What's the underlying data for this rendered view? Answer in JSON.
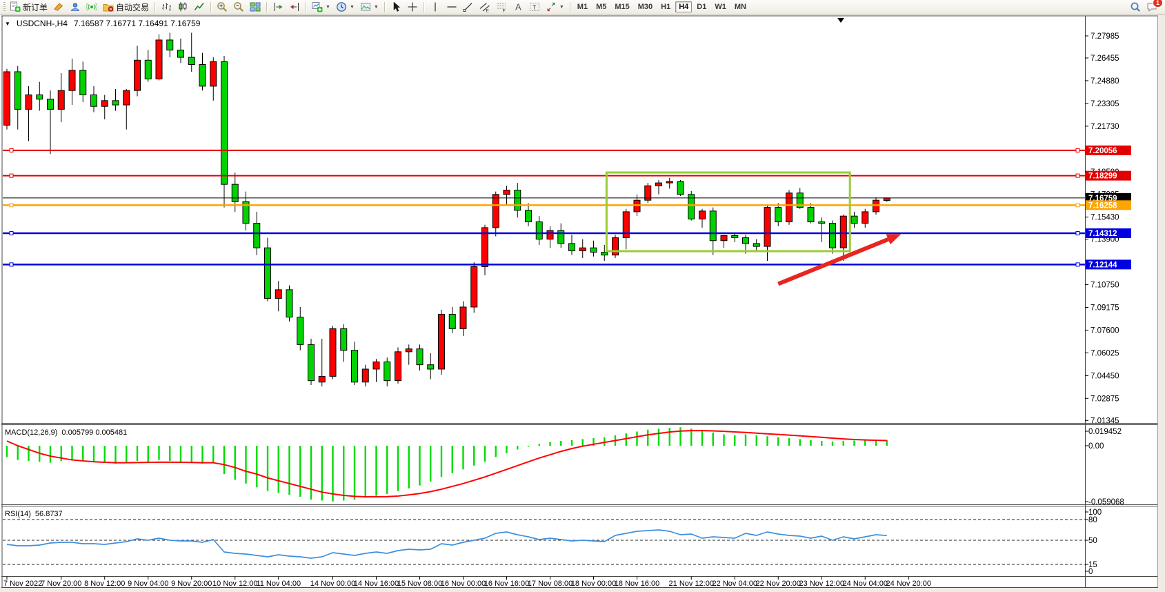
{
  "window": {
    "background": "#e9e6df"
  },
  "toolbar": {
    "groups": [
      {
        "name": "trade",
        "items": [
          {
            "name": "new-order-button",
            "icon": "new-order-icon",
            "label": "新订单"
          },
          {
            "name": "highlighter-button",
            "icon": "highlighter-icon"
          },
          {
            "name": "community-button",
            "icon": "cloud-user-icon"
          },
          {
            "name": "signals-button",
            "icon": "signal-icon"
          },
          {
            "name": "auto-trading-button",
            "icon": "autotrade-icon",
            "label": "自动交易"
          }
        ]
      },
      {
        "name": "chart-type",
        "items": [
          {
            "name": "bar-chart-button",
            "icon": "bars-chart-icon"
          },
          {
            "name": "candlestick-chart-button",
            "icon": "candle-chart-icon"
          },
          {
            "name": "line-chart-button",
            "icon": "line-chart-icon"
          }
        ]
      },
      {
        "name": "zoom",
        "items": [
          {
            "name": "zoom-in-button",
            "icon": "zoom-in-icon"
          },
          {
            "name": "zoom-out-button",
            "icon": "zoom-out-icon"
          },
          {
            "name": "tile-windows-button",
            "icon": "tile-windows-icon"
          }
        ]
      },
      {
        "name": "scroll",
        "items": [
          {
            "name": "auto-scroll-button",
            "icon": "auto-scroll-icon"
          },
          {
            "name": "chart-shift-button",
            "icon": "chart-shift-icon"
          }
        ]
      },
      {
        "name": "new-objects",
        "items": [
          {
            "name": "new-chart-button",
            "icon": "new-chart-icon",
            "dropdown": true
          },
          {
            "name": "period-button",
            "icon": "clock-icon",
            "dropdown": true
          },
          {
            "name": "templates-button",
            "icon": "template-icon",
            "dropdown": true
          }
        ]
      },
      {
        "name": "pointer",
        "items": [
          {
            "name": "cursor-button",
            "icon": "cursor-icon"
          },
          {
            "name": "crosshair-button",
            "icon": "crosshair-icon"
          }
        ]
      },
      {
        "name": "drawing-objects",
        "items": [
          {
            "name": "vertical-line-button",
            "icon": "vline-icon"
          },
          {
            "name": "horizontal-line-button",
            "icon": "hline-icon"
          },
          {
            "name": "trendline-button",
            "icon": "trendline-icon"
          },
          {
            "name": "channel-button",
            "icon": "channel-icon"
          },
          {
            "name": "fibonacci-button",
            "icon": "fibo-icon"
          },
          {
            "name": "text-button",
            "icon": "text-a-icon"
          },
          {
            "name": "text-label-button",
            "icon": "text-label-icon"
          },
          {
            "name": "arrows-button",
            "icon": "arrows-icon",
            "dropdown": true
          }
        ]
      },
      {
        "name": "timeframes",
        "type": "timeframes",
        "items": [
          {
            "name": "tf-m1",
            "label": "M1"
          },
          {
            "name": "tf-m5",
            "label": "M5"
          },
          {
            "name": "tf-m15",
            "label": "M15"
          },
          {
            "name": "tf-m30",
            "label": "M30"
          },
          {
            "name": "tf-h1",
            "label": "H1"
          },
          {
            "name": "tf-h4",
            "label": "H4",
            "active": true
          },
          {
            "name": "tf-d1",
            "label": "D1"
          },
          {
            "name": "tf-w1",
            "label": "W1"
          },
          {
            "name": "tf-mn",
            "label": "MN"
          }
        ]
      }
    ],
    "right_items": [
      {
        "name": "search-button",
        "icon": "search-icon"
      },
      {
        "name": "chat-button",
        "icon": "chat-icon",
        "badge": "1"
      }
    ]
  },
  "chart": {
    "symbol_period": "USDCNH-,H4",
    "ohlc": "7.16587 7.16771 7.16491 7.16759",
    "macd_label": "MACD(12,26,9)",
    "macd_values": "0.005799 0.005481",
    "rsi_label": "RSI(14)",
    "rsi_value": "56.8737"
  },
  "chart_data": {
    "type": "candlestick",
    "symbol": "USDCNH-",
    "timeframe": "H4",
    "current_bar": {
      "open": 7.16587,
      "high": 7.16771,
      "low": 7.16491,
      "close": 7.16759
    },
    "y_range": {
      "top": 7.27985,
      "bottom": 7.01345
    },
    "colors": {
      "bull": "#ff0000",
      "bear": "#00d300",
      "wick": "#000000",
      "macd_hist": "#00dd00",
      "macd_signal": "#ff0000",
      "rsi_line": "#3e8fde",
      "box": "#9acd32",
      "arrow": "#e8251f",
      "line_red": "#e30000",
      "line_blue": "#0000e0",
      "line_orange": "#ffa500",
      "line_black": "#000000"
    },
    "price_axis_labels": [
      "7.27985",
      "7.26455",
      "7.24880",
      "7.23305",
      "7.21730",
      "7.18580",
      "7.17005",
      "7.15430",
      "7.13900",
      "7.10750",
      "7.09175",
      "7.07600",
      "7.06025",
      "7.04450",
      "7.02875",
      "7.01345"
    ],
    "price_lines": [
      {
        "price": 7.20056,
        "label": "7.20056",
        "color": "#e30000",
        "text": "#ffffff",
        "type": "resistance-line",
        "width": 2
      },
      {
        "price": 7.18299,
        "label": "7.18299",
        "color": "#e30000",
        "text": "#ffffff",
        "type": "resistance-line",
        "width": 2
      },
      {
        "price": 7.16759,
        "label": "7.16759",
        "color": "#000000",
        "text": "#ffffff",
        "type": "current-price-line",
        "width": 1
      },
      {
        "price": 7.16258,
        "label": "7.16258",
        "color": "#ffa500",
        "text": "#ffffff",
        "type": "level-line",
        "width": 2.5
      },
      {
        "price": 7.14312,
        "label": "7.14312",
        "color": "#0000e0",
        "text": "#ffffff",
        "type": "support-line",
        "width": 2.5
      },
      {
        "price": 7.12144,
        "label": "7.12144",
        "color": "#0000e0",
        "text": "#ffffff",
        "type": "support-line",
        "width": 2.5
      }
    ],
    "time_labels": [
      "7 Nov 2022",
      "7 Nov 20:00",
      "8 Nov 12:00",
      "9 Nov 04:00",
      "9 Nov 20:00",
      "10 Nov 12:00",
      "11 Nov 04:00",
      "14 Nov 00:00",
      "14 Nov 16:00",
      "15 Nov 08:00",
      "16 Nov 00:00",
      "16 Nov 16:00",
      "17 Nov 08:00",
      "18 Nov 00:00",
      "18 Nov 16:00",
      "21 Nov 12:00",
      "22 Nov 04:00",
      "22 Nov 20:00",
      "23 Nov 12:00",
      "24 Nov 04:00",
      "24 Nov 20:00"
    ],
    "time_label_bars": [
      0,
      5,
      9,
      13,
      17,
      21,
      25,
      30,
      34,
      38,
      42,
      46,
      50,
      54,
      58,
      63,
      67,
      71,
      75,
      79,
      83
    ],
    "candles": [
      [
        7.218,
        7.257,
        7.215,
        7.255
      ],
      [
        7.255,
        7.259,
        7.215,
        7.229
      ],
      [
        7.229,
        7.245,
        7.207,
        7.239
      ],
      [
        7.239,
        7.248,
        7.228,
        7.236
      ],
      [
        7.236,
        7.242,
        7.198,
        7.229
      ],
      [
        7.229,
        7.254,
        7.22,
        7.242
      ],
      [
        7.242,
        7.264,
        7.232,
        7.256
      ],
      [
        7.256,
        7.262,
        7.234,
        7.239
      ],
      [
        7.239,
        7.245,
        7.227,
        7.231
      ],
      [
        7.231,
        7.239,
        7.222,
        7.235
      ],
      [
        7.235,
        7.243,
        7.228,
        7.232
      ],
      [
        7.232,
        7.243,
        7.215,
        7.242
      ],
      [
        7.242,
        7.273,
        7.238,
        7.263
      ],
      [
        7.263,
        7.27,
        7.248,
        7.25
      ],
      [
        7.25,
        7.281,
        7.249,
        7.277
      ],
      [
        7.277,
        7.282,
        7.265,
        7.27
      ],
      [
        7.27,
        7.278,
        7.261,
        7.265
      ],
      [
        7.265,
        7.282,
        7.255,
        7.26
      ],
      [
        7.26,
        7.268,
        7.242,
        7.245
      ],
      [
        7.245,
        7.265,
        7.235,
        7.262
      ],
      [
        7.262,
        7.266,
        7.161,
        7.177
      ],
      [
        7.177,
        7.185,
        7.158,
        7.165
      ],
      [
        7.165,
        7.172,
        7.145,
        7.15
      ],
      [
        7.15,
        7.158,
        7.128,
        7.133
      ],
      [
        7.133,
        7.14,
        7.096,
        7.098
      ],
      [
        7.098,
        7.11,
        7.089,
        7.104
      ],
      [
        7.104,
        7.107,
        7.082,
        7.085
      ],
      [
        7.085,
        7.092,
        7.062,
        7.066
      ],
      [
        7.066,
        7.07,
        7.038,
        7.041
      ],
      [
        7.04,
        7.07,
        7.037,
        7.044
      ],
      [
        7.044,
        7.079,
        7.042,
        7.077
      ],
      [
        7.077,
        7.08,
        7.054,
        7.062
      ],
      [
        7.062,
        7.068,
        7.038,
        7.04
      ],
      [
        7.04,
        7.052,
        7.037,
        7.049
      ],
      [
        7.049,
        7.056,
        7.04,
        7.054
      ],
      [
        7.054,
        7.057,
        7.037,
        7.041
      ],
      [
        7.041,
        7.064,
        7.039,
        7.061
      ],
      [
        7.061,
        7.066,
        7.052,
        7.063
      ],
      [
        7.063,
        7.066,
        7.048,
        7.052
      ],
      [
        7.052,
        7.06,
        7.042,
        7.049
      ],
      [
        7.049,
        7.09,
        7.045,
        7.087
      ],
      [
        7.087,
        7.092,
        7.074,
        7.077
      ],
      [
        7.077,
        7.096,
        7.072,
        7.092
      ],
      [
        7.092,
        7.123,
        7.088,
        7.12
      ],
      [
        7.12,
        7.149,
        7.114,
        7.147
      ],
      [
        7.147,
        7.172,
        7.141,
        7.17
      ],
      [
        7.17,
        7.176,
        7.162,
        7.173
      ],
      [
        7.173,
        7.178,
        7.154,
        7.159
      ],
      [
        7.159,
        7.164,
        7.148,
        7.151
      ],
      [
        7.151,
        7.155,
        7.135,
        7.139
      ],
      [
        7.139,
        7.148,
        7.133,
        7.145
      ],
      [
        7.145,
        7.15,
        7.133,
        7.136
      ],
      [
        7.136,
        7.142,
        7.128,
        7.131
      ],
      [
        7.131,
        7.139,
        7.126,
        7.133
      ],
      [
        7.133,
        7.138,
        7.127,
        7.13
      ],
      [
        7.13,
        7.135,
        7.124,
        7.128
      ],
      [
        7.128,
        7.142,
        7.126,
        7.14
      ],
      [
        7.14,
        7.16,
        7.132,
        7.158
      ],
      [
        7.158,
        7.17,
        7.155,
        7.166
      ],
      [
        7.166,
        7.178,
        7.164,
        7.176
      ],
      [
        7.176,
        7.18,
        7.17,
        7.178
      ],
      [
        7.178,
        7.1815,
        7.174,
        7.179
      ],
      [
        7.179,
        7.18,
        7.169,
        7.17
      ],
      [
        7.17,
        7.1724,
        7.152,
        7.153
      ],
      [
        7.153,
        7.16,
        7.147,
        7.1585
      ],
      [
        7.1585,
        7.161,
        7.128,
        7.138
      ],
      [
        7.138,
        7.142,
        7.133,
        7.1415
      ],
      [
        7.1415,
        7.143,
        7.137,
        7.14
      ],
      [
        7.14,
        7.142,
        7.129,
        7.136
      ],
      [
        7.136,
        7.139,
        7.13,
        7.134
      ],
      [
        7.134,
        7.162,
        7.124,
        7.161
      ],
      [
        7.161,
        7.164,
        7.148,
        7.151
      ],
      [
        7.151,
        7.173,
        7.149,
        7.171
      ],
      [
        7.171,
        7.1745,
        7.16,
        7.161
      ],
      [
        7.161,
        7.164,
        7.15,
        7.151
      ],
      [
        7.151,
        7.154,
        7.137,
        7.15
      ],
      [
        7.15,
        7.152,
        7.129,
        7.133
      ],
      [
        7.133,
        7.156,
        7.124,
        7.155
      ],
      [
        7.155,
        7.158,
        7.147,
        7.15
      ],
      [
        7.15,
        7.16,
        7.147,
        7.158
      ],
      [
        7.158,
        7.168,
        7.156,
        7.166
      ],
      [
        7.16587,
        7.16771,
        7.16491,
        7.16759
      ]
    ],
    "consolidation_box": {
      "bar_start": 55.2,
      "bar_end": 77.6,
      "price_top": 7.1852,
      "price_bottom": 7.1307,
      "color": "#9acd32"
    },
    "trend_arrow": {
      "from_bar": 71,
      "from_price": 7.108,
      "to_bar": 82.3,
      "to_price": 7.1425,
      "color": "#e8251f"
    },
    "macd": {
      "params": "12,26,9",
      "current_macd": 0.005799,
      "current_signal": 0.005481,
      "axis_labels": [
        "0.019452",
        "0.00",
        "-0.059068"
      ],
      "axis_values": [
        0.019452,
        0,
        -0.059068
      ],
      "histogram": [
        -0.012,
        -0.015,
        -0.016,
        -0.017,
        -0.018,
        -0.016,
        -0.015,
        -0.016,
        -0.017,
        -0.018,
        -0.019,
        -0.018,
        -0.016,
        -0.017,
        -0.015,
        -0.016,
        -0.017,
        -0.018,
        -0.019,
        -0.018,
        -0.03,
        -0.036,
        -0.04,
        -0.044,
        -0.048,
        -0.05,
        -0.052,
        -0.054,
        -0.057,
        -0.058,
        -0.059,
        -0.058,
        -0.057,
        -0.055,
        -0.053,
        -0.051,
        -0.048,
        -0.045,
        -0.042,
        -0.038,
        -0.033,
        -0.029,
        -0.025,
        -0.021,
        -0.017,
        -0.012,
        -0.008,
        -0.004,
        -0.001,
        0.002,
        0.004,
        0.005,
        0.006,
        0.007,
        0.008,
        0.009,
        0.011,
        0.013,
        0.015,
        0.017,
        0.018,
        0.019,
        0.0195,
        0.018,
        0.016,
        0.014,
        0.012,
        0.011,
        0.012,
        0.011,
        0.01,
        0.009,
        0.008,
        0.007,
        0.006,
        0.005,
        0.0045,
        0.005,
        0.0055,
        0.0057,
        0.0058,
        0.0058
      ],
      "signal": [
        0.005,
        0.0,
        -0.004,
        -0.008,
        -0.011,
        -0.013,
        -0.015,
        -0.016,
        -0.017,
        -0.0175,
        -0.018,
        -0.018,
        -0.0178,
        -0.0176,
        -0.0174,
        -0.0174,
        -0.0175,
        -0.0177,
        -0.018,
        -0.018,
        -0.02,
        -0.023,
        -0.027,
        -0.03,
        -0.034,
        -0.037,
        -0.04,
        -0.043,
        -0.046,
        -0.049,
        -0.051,
        -0.0525,
        -0.0535,
        -0.054,
        -0.054,
        -0.0538,
        -0.0532,
        -0.052,
        -0.0505,
        -0.0485,
        -0.046,
        -0.043,
        -0.04,
        -0.0365,
        -0.033,
        -0.029,
        -0.025,
        -0.021,
        -0.017,
        -0.013,
        -0.0095,
        -0.006,
        -0.003,
        -0.0005,
        0.0015,
        0.0035,
        0.0055,
        0.0075,
        0.0095,
        0.0115,
        0.013,
        0.0145,
        0.0155,
        0.016,
        0.016,
        0.0157,
        0.0152,
        0.0146,
        0.014,
        0.0133,
        0.0126,
        0.0119,
        0.0112,
        0.0105,
        0.0097,
        0.0089,
        0.008,
        0.0072,
        0.0066,
        0.0061,
        0.0057,
        0.0055
      ]
    },
    "rsi": {
      "period": 14,
      "current": 56.8737,
      "axis_labels": [
        "100",
        "80",
        "50",
        "15",
        "0"
      ],
      "axis_values": [
        100,
        80,
        50,
        15,
        0
      ],
      "levels": [
        80,
        50,
        15
      ],
      "values": [
        44,
        42,
        42,
        43,
        46,
        47,
        47,
        45,
        45,
        44,
        46,
        48,
        52,
        50,
        53,
        50,
        49,
        49,
        47,
        51,
        33,
        31,
        30,
        28,
        26,
        29,
        27,
        26,
        24,
        26,
        32,
        30,
        28,
        31,
        33,
        31,
        35,
        37,
        36,
        37,
        45,
        43,
        47,
        50,
        53,
        60,
        62,
        58,
        55,
        51,
        53,
        51,
        49,
        50,
        49,
        48,
        57,
        60,
        63,
        64,
        65,
        63,
        58,
        59,
        53,
        55,
        54,
        53,
        60,
        57,
        62,
        59,
        57,
        56,
        53,
        56,
        50,
        55,
        52,
        55,
        58,
        56.87
      ]
    }
  }
}
